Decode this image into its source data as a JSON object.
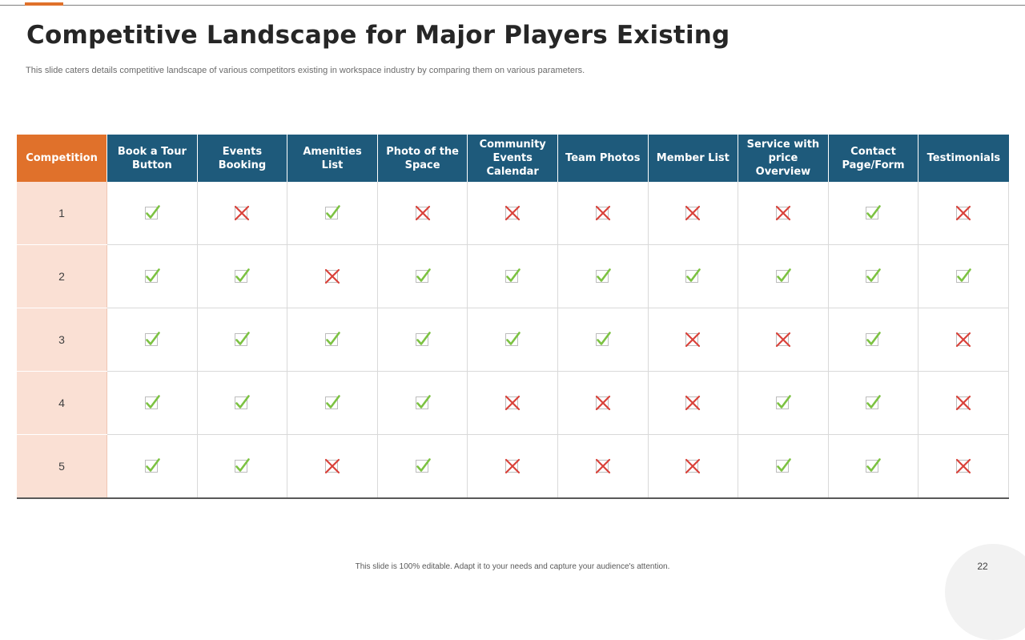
{
  "header": {
    "title": "Competitive Landscape for Major Players Existing",
    "subtitle": "This slide caters details competitive landscape of various competitors existing in workspace industry by comparing them on various parameters."
  },
  "table": {
    "columns": [
      "Competition",
      "Book a Tour Button",
      "Events Booking",
      "Amenities List",
      "Photo of the Space",
      "Community Events Calendar",
      "Team Photos",
      "Member List",
      "Service with price Overview",
      "Contact Page/Form",
      "Testimonials"
    ],
    "rows": [
      {
        "label": "1",
        "marks": [
          "check",
          "cross",
          "check",
          "cross",
          "cross",
          "cross",
          "cross",
          "cross",
          "check",
          "cross"
        ]
      },
      {
        "label": "2",
        "marks": [
          "check",
          "check",
          "cross",
          "check",
          "check",
          "check",
          "check",
          "check",
          "check",
          "check"
        ]
      },
      {
        "label": "3",
        "marks": [
          "check",
          "check",
          "check",
          "check",
          "check",
          "check",
          "cross",
          "cross",
          "check",
          "cross"
        ]
      },
      {
        "label": "4",
        "marks": [
          "check",
          "check",
          "check",
          "check",
          "cross",
          "cross",
          "cross",
          "check",
          "check",
          "cross"
        ]
      },
      {
        "label": "5",
        "marks": [
          "check",
          "check",
          "cross",
          "check",
          "cross",
          "cross",
          "cross",
          "check",
          "check",
          "cross"
        ]
      }
    ]
  },
  "icons": {
    "check": "check-icon",
    "cross": "cross-icon"
  },
  "colors": {
    "accent": "#e0712b",
    "header_bg": "#1e5a7b",
    "first_column_bg": "#fae0d4",
    "check": "#7cc242",
    "cross": "#d9423a"
  },
  "footer": {
    "note": "This slide is 100% editable. Adapt it to your needs and capture your audience's attention.",
    "page_number": "22"
  }
}
